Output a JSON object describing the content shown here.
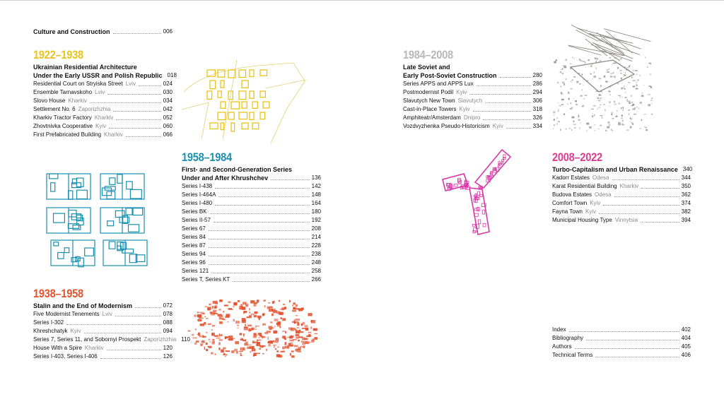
{
  "intro": {
    "label": "Culture and Construction",
    "page": "006"
  },
  "colors": {
    "p1922": "#e9c31b",
    "p1958": "#1a8fae",
    "p1938": "#e2522f",
    "p1984": "#b8b8b8",
    "p2008": "#de3c91",
    "art_gray": "#8d8a86",
    "art_pink": "#d837a6"
  },
  "sections": [
    {
      "id": "1922",
      "period": "1922–1938",
      "header_lines": [
        "Ukrainian Residential Architecture",
        "Under the Early USSR and Polish Republic"
      ],
      "header_page": "018",
      "entries": [
        {
          "title": "Residential Court on Stryiska Street",
          "city": "Lviv",
          "page": "024"
        },
        {
          "title": "Ensemble Tarnavskoho",
          "city": "Lviv",
          "page": "030"
        },
        {
          "title": "Slovo House",
          "city": "Kharkiv",
          "page": "034"
        },
        {
          "title": "Settlement No. 6",
          "city": "Zaporizhzhia",
          "page": "042"
        },
        {
          "title": "Kharkiv Tractor Factory",
          "city": "Kharkiv",
          "page": "052"
        },
        {
          "title": "Zhovtnivka Cooperative",
          "city": "Kyiv",
          "page": "060"
        },
        {
          "title": "First Prefabricated Building",
          "city": "Kharkiv",
          "page": "066"
        }
      ]
    },
    {
      "id": "1958",
      "period": "1958–1984",
      "header_lines": [
        "First- and Second-Generation Series",
        "Under and After Khrushchev"
      ],
      "header_page": "136",
      "entries": [
        {
          "title": "Series I-438",
          "city": "",
          "page": "142"
        },
        {
          "title": "Series I-464A",
          "city": "",
          "page": "148"
        },
        {
          "title": "Series I-480",
          "city": "",
          "page": "164"
        },
        {
          "title": "Series BK",
          "city": "",
          "page": "180"
        },
        {
          "title": "Series II-57",
          "city": "",
          "page": "192"
        },
        {
          "title": "Series 67",
          "city": "",
          "page": "208"
        },
        {
          "title": "Series 84",
          "city": "",
          "page": "214"
        },
        {
          "title": "Series 87",
          "city": "",
          "page": "228"
        },
        {
          "title": "Series 94",
          "city": "",
          "page": "238"
        },
        {
          "title": "Series 96",
          "city": "",
          "page": "248"
        },
        {
          "title": "Series 121",
          "city": "",
          "page": "258"
        },
        {
          "title": "Series T, Series KT",
          "city": "",
          "page": "266"
        }
      ]
    },
    {
      "id": "1938",
      "period": "1938–1958",
      "header_lines": [
        "Stalin and the End of Modernism"
      ],
      "header_page": "072",
      "entries": [
        {
          "title": "Five Modernist Tenements",
          "city": "Lviv",
          "page": "078"
        },
        {
          "title": "Series I-302",
          "city": "",
          "page": "088"
        },
        {
          "title": "Khreshchatyk",
          "city": "Kyiv",
          "page": "094"
        },
        {
          "title": "Series 7, Series 11, and Sobornyi Prospekt",
          "city": "Zaporizhzhia",
          "page": "110"
        },
        {
          "title": "House With a Spire",
          "city": "Kharkiv",
          "page": "120"
        },
        {
          "title": "Series I-403, Series I-406",
          "city": "",
          "page": "126"
        }
      ]
    },
    {
      "id": "1984",
      "period": "1984–2008",
      "header_lines": [
        "Late Soviet and",
        "Early Post-Soviet Construction"
      ],
      "header_page": "280",
      "entries": [
        {
          "title": "Series APPS and APPS Lux",
          "city": "",
          "page": "286"
        },
        {
          "title": "Postmodernist Podil",
          "city": "Kyiv",
          "page": "294"
        },
        {
          "title": "Slavutych New Town",
          "city": "Slavutych",
          "page": "306"
        },
        {
          "title": "Cast-in-Place Towers",
          "city": "Kyiv",
          "page": "318"
        },
        {
          "title": "Amphiteatr/Amsterdam",
          "city": "Dnipro",
          "page": "326"
        },
        {
          "title": "Vozdvyzhenka Pseudo-Historicism",
          "city": "Kyiv",
          "page": "334"
        }
      ]
    },
    {
      "id": "2008",
      "period": "2008–2022",
      "header_lines": [
        "Turbo-Capitalism and Urban Renaissance"
      ],
      "header_page": "340",
      "entries": [
        {
          "title": "Kadorr Estates",
          "city": "Odesa",
          "page": "344"
        },
        {
          "title": "Karat Residential Building",
          "city": "Kharkiv",
          "page": "350"
        },
        {
          "title": "Budova Estates",
          "city": "Odesa",
          "page": "362"
        },
        {
          "title": "Comfort Town",
          "city": "Kyiv",
          "page": "374"
        },
        {
          "title": "Fayna Town",
          "city": "Kyiv",
          "page": "382"
        },
        {
          "title": "Municipal Housing Type",
          "city": "Vinnytsia",
          "page": "394"
        }
      ]
    }
  ],
  "back_matter": [
    {
      "title": "Index",
      "page": "402"
    },
    {
      "title": "Bibliography",
      "page": "404"
    },
    {
      "title": "Authors",
      "page": "405"
    },
    {
      "title": "Technical Terms",
      "page": "406"
    }
  ]
}
